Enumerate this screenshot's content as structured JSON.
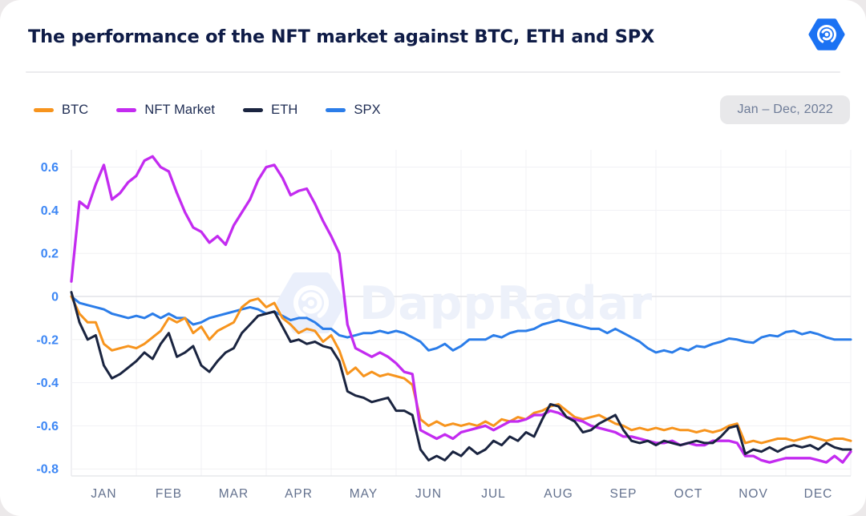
{
  "header": {
    "title": "The performance of the NFT market against BTC, ETH and SPX",
    "logo_icon": "dappradar-spiral-hexagon-icon"
  },
  "period_badge": "Jan – Dec, 2022",
  "watermark": {
    "text": "DappRadar",
    "icon": "dappradar-spiral-hexagon-icon"
  },
  "legend": [
    {
      "label": "BTC",
      "color": "#F7941D"
    },
    {
      "label": "NFT Market",
      "color": "#C32BF0"
    },
    {
      "label": "ETH",
      "color": "#1A2440"
    },
    {
      "label": "SPX",
      "color": "#2B7DE9"
    }
  ],
  "chart_data": {
    "type": "line",
    "title": "The performance of the NFT market against BTC, ETH and SPX",
    "subtitle": "Jan – Dec, 2022",
    "grid": true,
    "legend_position": "top-left",
    "x_axis": {
      "unit": "month",
      "range_months": [
        0,
        12
      ],
      "tick_labels": [
        "JAN",
        "FEB",
        "MAR",
        "APR",
        "MAY",
        "JUN",
        "JUL",
        "AUG",
        "SEP",
        "OCT",
        "NOV",
        "DEC"
      ]
    },
    "y_axis": {
      "range": [
        -0.8,
        0.66
      ],
      "ticks": [
        0.6,
        0.4,
        0.2,
        0,
        -0.2,
        -0.4,
        -0.6,
        -0.8
      ],
      "tick_labels": [
        "0.6",
        "0.4",
        "0.2",
        "0",
        "-0.2",
        "-0.4",
        "-0.6",
        "-0.8"
      ]
    },
    "sampling": {
      "x_start_month": 0,
      "x_step_month": 0.125,
      "points_per_series": 97
    },
    "series": [
      {
        "name": "SPX",
        "color": "#2B7DE9",
        "values": [
          0.0,
          -0.03,
          -0.04,
          -0.05,
          -0.06,
          -0.08,
          -0.09,
          -0.1,
          -0.09,
          -0.1,
          -0.08,
          -0.1,
          -0.08,
          -0.1,
          -0.1,
          -0.13,
          -0.12,
          -0.1,
          -0.09,
          -0.08,
          -0.07,
          -0.06,
          -0.05,
          -0.06,
          -0.08,
          -0.07,
          -0.09,
          -0.11,
          -0.1,
          -0.1,
          -0.12,
          -0.15,
          -0.15,
          -0.18,
          -0.19,
          -0.18,
          -0.17,
          -0.17,
          -0.16,
          -0.17,
          -0.16,
          -0.17,
          -0.19,
          -0.21,
          -0.25,
          -0.24,
          -0.22,
          -0.25,
          -0.23,
          -0.2,
          -0.2,
          -0.2,
          -0.18,
          -0.19,
          -0.17,
          -0.16,
          -0.16,
          -0.15,
          -0.13,
          -0.12,
          -0.11,
          -0.12,
          -0.13,
          -0.14,
          -0.15,
          -0.15,
          -0.17,
          -0.15,
          -0.17,
          -0.19,
          -0.21,
          -0.24,
          -0.26,
          -0.25,
          -0.26,
          -0.24,
          -0.25,
          -0.23,
          -0.235,
          -0.22,
          -0.21,
          -0.195,
          -0.2,
          -0.21,
          -0.215,
          -0.19,
          -0.18,
          -0.185,
          -0.165,
          -0.16,
          -0.175,
          -0.165,
          -0.175,
          -0.19,
          -0.2,
          -0.2,
          -0.2
        ]
      },
      {
        "name": "BTC",
        "color": "#F7941D",
        "values": [
          0.0,
          -0.08,
          -0.12,
          -0.12,
          -0.22,
          -0.25,
          -0.24,
          -0.23,
          -0.24,
          -0.22,
          -0.19,
          -0.16,
          -0.1,
          -0.12,
          -0.1,
          -0.17,
          -0.14,
          -0.2,
          -0.16,
          -0.14,
          -0.12,
          -0.05,
          -0.02,
          -0.01,
          -0.05,
          -0.03,
          -0.1,
          -0.13,
          -0.17,
          -0.15,
          -0.16,
          -0.21,
          -0.18,
          -0.25,
          -0.36,
          -0.33,
          -0.37,
          -0.35,
          -0.37,
          -0.36,
          -0.37,
          -0.38,
          -0.41,
          -0.57,
          -0.6,
          -0.58,
          -0.6,
          -0.59,
          -0.6,
          -0.59,
          -0.6,
          -0.58,
          -0.6,
          -0.57,
          -0.58,
          -0.56,
          -0.57,
          -0.54,
          -0.53,
          -0.51,
          -0.5,
          -0.53,
          -0.56,
          -0.57,
          -0.56,
          -0.55,
          -0.57,
          -0.59,
          -0.6,
          -0.62,
          -0.61,
          -0.62,
          -0.61,
          -0.62,
          -0.61,
          -0.62,
          -0.62,
          -0.63,
          -0.62,
          -0.63,
          -0.62,
          -0.6,
          -0.59,
          -0.68,
          -0.67,
          -0.68,
          -0.67,
          -0.66,
          -0.66,
          -0.67,
          -0.66,
          -0.65,
          -0.66,
          -0.67,
          -0.66,
          -0.66,
          -0.67
        ]
      },
      {
        "name": "NFT Market",
        "color": "#C32BF0",
        "values": [
          0.07,
          0.44,
          0.41,
          0.52,
          0.61,
          0.45,
          0.48,
          0.53,
          0.56,
          0.63,
          0.65,
          0.6,
          0.58,
          0.48,
          0.39,
          0.32,
          0.3,
          0.25,
          0.28,
          0.24,
          0.33,
          0.39,
          0.45,
          0.54,
          0.6,
          0.61,
          0.55,
          0.47,
          0.49,
          0.5,
          0.43,
          0.35,
          0.28,
          0.2,
          -0.13,
          -0.24,
          -0.26,
          -0.28,
          -0.26,
          -0.28,
          -0.31,
          -0.35,
          -0.36,
          -0.62,
          -0.64,
          -0.66,
          -0.64,
          -0.66,
          -0.63,
          -0.62,
          -0.61,
          -0.6,
          -0.62,
          -0.6,
          -0.58,
          -0.58,
          -0.57,
          -0.55,
          -0.55,
          -0.53,
          -0.54,
          -0.56,
          -0.57,
          -0.58,
          -0.6,
          -0.61,
          -0.62,
          -0.63,
          -0.65,
          -0.65,
          -0.66,
          -0.67,
          -0.68,
          -0.68,
          -0.67,
          -0.69,
          -0.68,
          -0.69,
          -0.69,
          -0.67,
          -0.67,
          -0.67,
          -0.68,
          -0.74,
          -0.74,
          -0.76,
          -0.77,
          -0.76,
          -0.75,
          -0.75,
          -0.75,
          -0.75,
          -0.76,
          -0.77,
          -0.74,
          -0.77,
          -0.72
        ]
      },
      {
        "name": "ETH",
        "color": "#1A2440",
        "values": [
          0.02,
          -0.12,
          -0.2,
          -0.18,
          -0.32,
          -0.38,
          -0.36,
          -0.33,
          -0.3,
          -0.26,
          -0.29,
          -0.22,
          -0.17,
          -0.28,
          -0.26,
          -0.23,
          -0.32,
          -0.35,
          -0.3,
          -0.26,
          -0.24,
          -0.17,
          -0.13,
          -0.09,
          -0.08,
          -0.07,
          -0.14,
          -0.21,
          -0.2,
          -0.22,
          -0.21,
          -0.23,
          -0.24,
          -0.3,
          -0.44,
          -0.46,
          -0.47,
          -0.49,
          -0.48,
          -0.47,
          -0.53,
          -0.53,
          -0.55,
          -0.71,
          -0.76,
          -0.74,
          -0.76,
          -0.72,
          -0.74,
          -0.7,
          -0.73,
          -0.71,
          -0.67,
          -0.69,
          -0.65,
          -0.67,
          -0.63,
          -0.65,
          -0.57,
          -0.5,
          -0.51,
          -0.56,
          -0.58,
          -0.63,
          -0.62,
          -0.59,
          -0.57,
          -0.55,
          -0.62,
          -0.67,
          -0.68,
          -0.67,
          -0.69,
          -0.67,
          -0.68,
          -0.69,
          -0.68,
          -0.67,
          -0.68,
          -0.68,
          -0.65,
          -0.61,
          -0.6,
          -0.73,
          -0.71,
          -0.72,
          -0.7,
          -0.72,
          -0.7,
          -0.69,
          -0.7,
          -0.69,
          -0.71,
          -0.68,
          -0.7,
          -0.71,
          -0.71
        ]
      }
    ]
  }
}
